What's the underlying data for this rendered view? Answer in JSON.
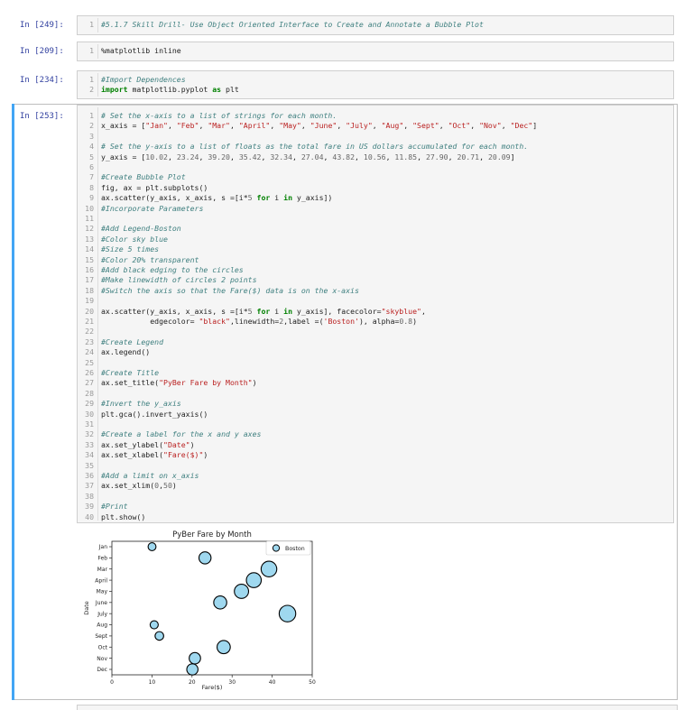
{
  "cells": [
    {
      "prompt": "In [249]:",
      "top": 17,
      "height": 22,
      "lines": [
        {
          "n": "1",
          "parts": [
            [
              "cm",
              "#5.1.7 Skill Drill- Use Object Oriented Interface to Create and Annotate a Bubble Plot"
            ]
          ]
        }
      ]
    },
    {
      "prompt": "In [209]:",
      "top": 46,
      "height": 22,
      "lines": [
        {
          "n": "1",
          "parts": [
            [
              "",
              "%matplotlib inline"
            ]
          ]
        }
      ]
    },
    {
      "prompt": "In [234]:",
      "top": 78,
      "height": 32,
      "lines": [
        {
          "n": "1",
          "parts": [
            [
              "cm",
              "#Import Dependences"
            ]
          ]
        },
        {
          "n": "2",
          "parts": [
            [
              "kw",
              "import"
            ],
            [
              "",
              " matplotlib.pyplot "
            ],
            [
              "kw",
              "as"
            ],
            [
              "",
              " plt"
            ]
          ]
        }
      ]
    }
  ],
  "main_cell": {
    "prompt": "In [253]:",
    "lines": [
      {
        "n": "1",
        "parts": [
          [
            "cm",
            "# Set the x-axis to a list of strings for each month."
          ]
        ]
      },
      {
        "n": "2",
        "parts": [
          [
            "",
            "x_axis = ["
          ],
          [
            "str",
            "\"Jan\""
          ],
          [
            "",
            ", "
          ],
          [
            "str",
            "\"Feb\""
          ],
          [
            "",
            ", "
          ],
          [
            "str",
            "\"Mar\""
          ],
          [
            "",
            ", "
          ],
          [
            "str",
            "\"April\""
          ],
          [
            "",
            ", "
          ],
          [
            "str",
            "\"May\""
          ],
          [
            "",
            ", "
          ],
          [
            "str",
            "\"June\""
          ],
          [
            "",
            ", "
          ],
          [
            "str",
            "\"July\""
          ],
          [
            "",
            ", "
          ],
          [
            "str",
            "\"Aug\""
          ],
          [
            "",
            ", "
          ],
          [
            "str",
            "\"Sept\""
          ],
          [
            "",
            ", "
          ],
          [
            "str",
            "\"Oct\""
          ],
          [
            "",
            ", "
          ],
          [
            "str",
            "\"Nov\""
          ],
          [
            "",
            ", "
          ],
          [
            "str",
            "\"Dec\""
          ],
          [
            "",
            "]"
          ]
        ]
      },
      {
        "n": "3",
        "parts": []
      },
      {
        "n": "4",
        "parts": [
          [
            "cm",
            "# Set the y-axis to a list of floats as the total fare in US dollars accumulated for each month."
          ]
        ]
      },
      {
        "n": "5",
        "parts": [
          [
            "",
            "y_axis = ["
          ],
          [
            "num",
            "10.02"
          ],
          [
            "",
            ", "
          ],
          [
            "num",
            "23.24"
          ],
          [
            "",
            ", "
          ],
          [
            "num",
            "39.20"
          ],
          [
            "",
            ", "
          ],
          [
            "num",
            "35.42"
          ],
          [
            "",
            ", "
          ],
          [
            "num",
            "32.34"
          ],
          [
            "",
            ", "
          ],
          [
            "num",
            "27.04"
          ],
          [
            "",
            ", "
          ],
          [
            "num",
            "43.82"
          ],
          [
            "",
            ", "
          ],
          [
            "num",
            "10.56"
          ],
          [
            "",
            ", "
          ],
          [
            "num",
            "11.85"
          ],
          [
            "",
            ", "
          ],
          [
            "num",
            "27.90"
          ],
          [
            "",
            ", "
          ],
          [
            "num",
            "20.71"
          ],
          [
            "",
            ", "
          ],
          [
            "num",
            "20.09"
          ],
          [
            "",
            "]"
          ]
        ]
      },
      {
        "n": "6",
        "parts": []
      },
      {
        "n": "7",
        "parts": [
          [
            "cm",
            "#Create Bubble Plot"
          ]
        ]
      },
      {
        "n": "8",
        "parts": [
          [
            "",
            "fig, ax = plt.subplots()"
          ]
        ]
      },
      {
        "n": "9",
        "parts": [
          [
            "",
            "ax.scatter(y_axis, x_axis, s =[i*"
          ],
          [
            "num",
            "5"
          ],
          [
            "",
            " "
          ],
          [
            "kw",
            "for"
          ],
          [
            "",
            " i "
          ],
          [
            "kw",
            "in"
          ],
          [
            "",
            " y_axis])"
          ]
        ]
      },
      {
        "n": "10",
        "parts": [
          [
            "cm",
            "#Incorporate Parameters"
          ]
        ]
      },
      {
        "n": "11",
        "parts": []
      },
      {
        "n": "12",
        "parts": [
          [
            "cm",
            "#Add Legend-Boston"
          ]
        ]
      },
      {
        "n": "13",
        "parts": [
          [
            "cm",
            "#Color sky blue"
          ]
        ]
      },
      {
        "n": "14",
        "parts": [
          [
            "cm",
            "#Size 5 times"
          ]
        ]
      },
      {
        "n": "15",
        "parts": [
          [
            "cm",
            "#Color 20% transparent"
          ]
        ]
      },
      {
        "n": "16",
        "parts": [
          [
            "cm",
            "#Add black edging to the circles"
          ]
        ]
      },
      {
        "n": "17",
        "parts": [
          [
            "cm",
            "#Make linewidth of circles 2 points"
          ]
        ]
      },
      {
        "n": "18",
        "parts": [
          [
            "cm",
            "#Switch the axis so that the Fare($) data is on the x-axis"
          ]
        ]
      },
      {
        "n": "19",
        "parts": []
      },
      {
        "n": "20",
        "parts": [
          [
            "",
            "ax.scatter(y_axis, x_axis, s =[i*"
          ],
          [
            "num",
            "5"
          ],
          [
            "",
            " "
          ],
          [
            "kw",
            "for"
          ],
          [
            "",
            " i "
          ],
          [
            "kw",
            "in"
          ],
          [
            "",
            " y_axis], facecolor="
          ],
          [
            "str",
            "\"skyblue\""
          ],
          [
            "",
            ","
          ]
        ]
      },
      {
        "n": "21",
        "parts": [
          [
            "",
            "           edgecolor= "
          ],
          [
            "str",
            "\"black\""
          ],
          [
            "",
            ",linewidth="
          ],
          [
            "num",
            "2"
          ],
          [
            "",
            ",label =("
          ],
          [
            "str",
            "'Boston'"
          ],
          [
            "",
            "), alpha="
          ],
          [
            "num",
            "0.8"
          ],
          [
            "",
            ")"
          ]
        ]
      },
      {
        "n": "22",
        "parts": []
      },
      {
        "n": "23",
        "parts": [
          [
            "cm",
            "#Create Legend"
          ]
        ]
      },
      {
        "n": "24",
        "parts": [
          [
            "",
            "ax.legend()"
          ]
        ]
      },
      {
        "n": "25",
        "parts": []
      },
      {
        "n": "26",
        "parts": [
          [
            "cm",
            "#Create Title"
          ]
        ]
      },
      {
        "n": "27",
        "parts": [
          [
            "",
            "ax.set_title("
          ],
          [
            "str",
            "\"PyBer Fare by Month\""
          ],
          [
            "",
            ")"
          ]
        ]
      },
      {
        "n": "28",
        "parts": []
      },
      {
        "n": "29",
        "parts": [
          [
            "cm",
            "#Invert the y_axis"
          ]
        ]
      },
      {
        "n": "30",
        "parts": [
          [
            "",
            "plt.gca().invert_yaxis()"
          ]
        ]
      },
      {
        "n": "31",
        "parts": []
      },
      {
        "n": "32",
        "parts": [
          [
            "cm",
            "#Create a label for the x and y axes"
          ]
        ]
      },
      {
        "n": "33",
        "parts": [
          [
            "",
            "ax.set_ylabel("
          ],
          [
            "str",
            "\"Date\""
          ],
          [
            "",
            ")"
          ]
        ]
      },
      {
        "n": "34",
        "parts": [
          [
            "",
            "ax.set_xlabel("
          ],
          [
            "str",
            "\"Fare($)\""
          ],
          [
            "",
            ")"
          ]
        ]
      },
      {
        "n": "35",
        "parts": []
      },
      {
        "n": "36",
        "parts": [
          [
            "cm",
            "#Add a limit on x_axis"
          ]
        ]
      },
      {
        "n": "37",
        "parts": [
          [
            "",
            "ax.set_xlim("
          ],
          [
            "num",
            "0"
          ],
          [
            "",
            ","
          ],
          [
            "num",
            "50"
          ],
          [
            "",
            ")"
          ]
        ]
      },
      {
        "n": "38",
        "parts": []
      },
      {
        "n": "39",
        "parts": [
          [
            "cm",
            "#Print"
          ]
        ]
      },
      {
        "n": "40",
        "parts": [
          [
            "",
            "plt.show()"
          ]
        ]
      }
    ]
  },
  "chart_data": {
    "type": "scatter",
    "title": "PyBer Fare by Month",
    "xlabel": "Fare($)",
    "ylabel": "Date",
    "xlim": [
      0,
      50
    ],
    "xticks": [
      "0",
      "10",
      "20",
      "30",
      "40",
      "50"
    ],
    "categories": [
      "Jan",
      "Feb",
      "Mar",
      "April",
      "May",
      "June",
      "July",
      "Aug",
      "Sept",
      "Oct",
      "Nov",
      "Dec"
    ],
    "series": [
      {
        "name": "Boston",
        "color": "#87ceeb",
        "edgecolor": "#000000",
        "x": [
          10.02,
          23.24,
          39.2,
          35.42,
          32.34,
          27.04,
          43.82,
          10.56,
          11.85,
          27.9,
          20.71,
          20.09
        ]
      }
    ],
    "legend_position": "top-right",
    "y_inverted": true,
    "grid": false
  }
}
